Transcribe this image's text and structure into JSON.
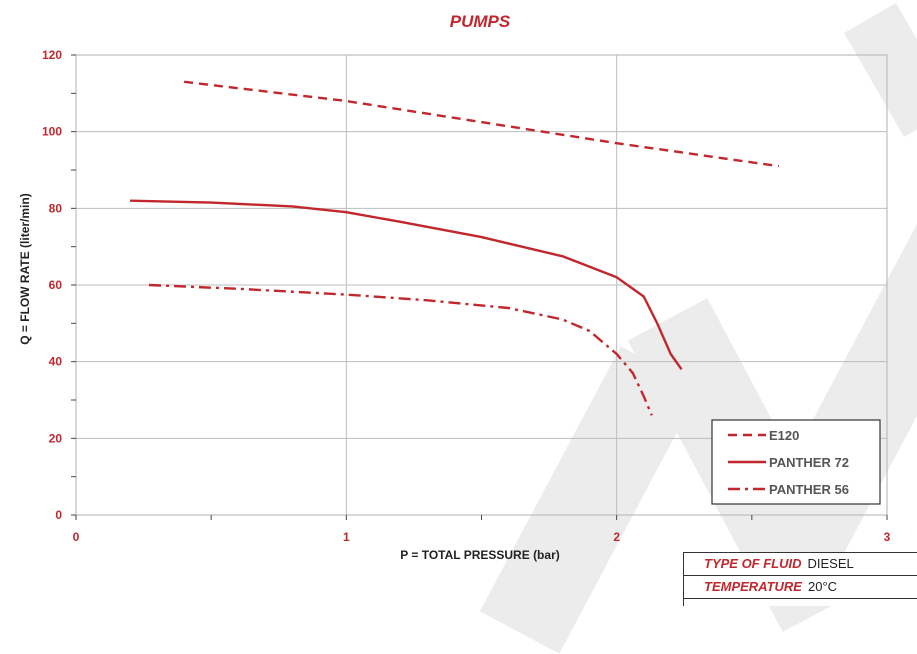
{
  "colors": {
    "accent": "#c1272d",
    "grid": "#bdbdbd",
    "watermark": "#ececec"
  },
  "chart_data": {
    "type": "line",
    "title": "PUMPS",
    "xlabel": "P = TOTAL PRESSURE (bar)",
    "ylabel": "Q = FLOW RATE (liter/min)",
    "xlim": [
      0,
      3
    ],
    "ylim": [
      0,
      120
    ],
    "xticks": [
      "0",
      "1",
      "2",
      "3"
    ],
    "yticks": [
      "0",
      "20",
      "40",
      "60",
      "80",
      "100",
      "120"
    ],
    "grid": true,
    "legend_position": "bottom-right",
    "series": [
      {
        "name": "E120",
        "style": "dashed",
        "x": [
          0.4,
          1.0,
          2.0,
          2.6
        ],
        "y": [
          113,
          108,
          97,
          91
        ]
      },
      {
        "name": "PANTHER 72",
        "style": "solid",
        "x": [
          0.2,
          0.5,
          0.8,
          1.0,
          1.2,
          1.5,
          1.8,
          2.0,
          2.1,
          2.15,
          2.2,
          2.24
        ],
        "y": [
          82,
          81.5,
          80.5,
          79,
          76.5,
          72.5,
          67.5,
          62,
          57,
          50,
          42,
          38
        ]
      },
      {
        "name": "PANTHER 56",
        "style": "dashdot",
        "x": [
          0.27,
          0.6,
          1.0,
          1.3,
          1.6,
          1.8,
          1.9,
          2.0,
          2.06,
          2.1,
          2.13
        ],
        "y": [
          60,
          59,
          57.5,
          56,
          54,
          51,
          48,
          42,
          37,
          31,
          26
        ]
      }
    ]
  },
  "info": [
    {
      "key": "TYPE OF FLUID",
      "value": "DIESEL"
    },
    {
      "key": "TEMPERATURE",
      "value": "20°C"
    }
  ]
}
